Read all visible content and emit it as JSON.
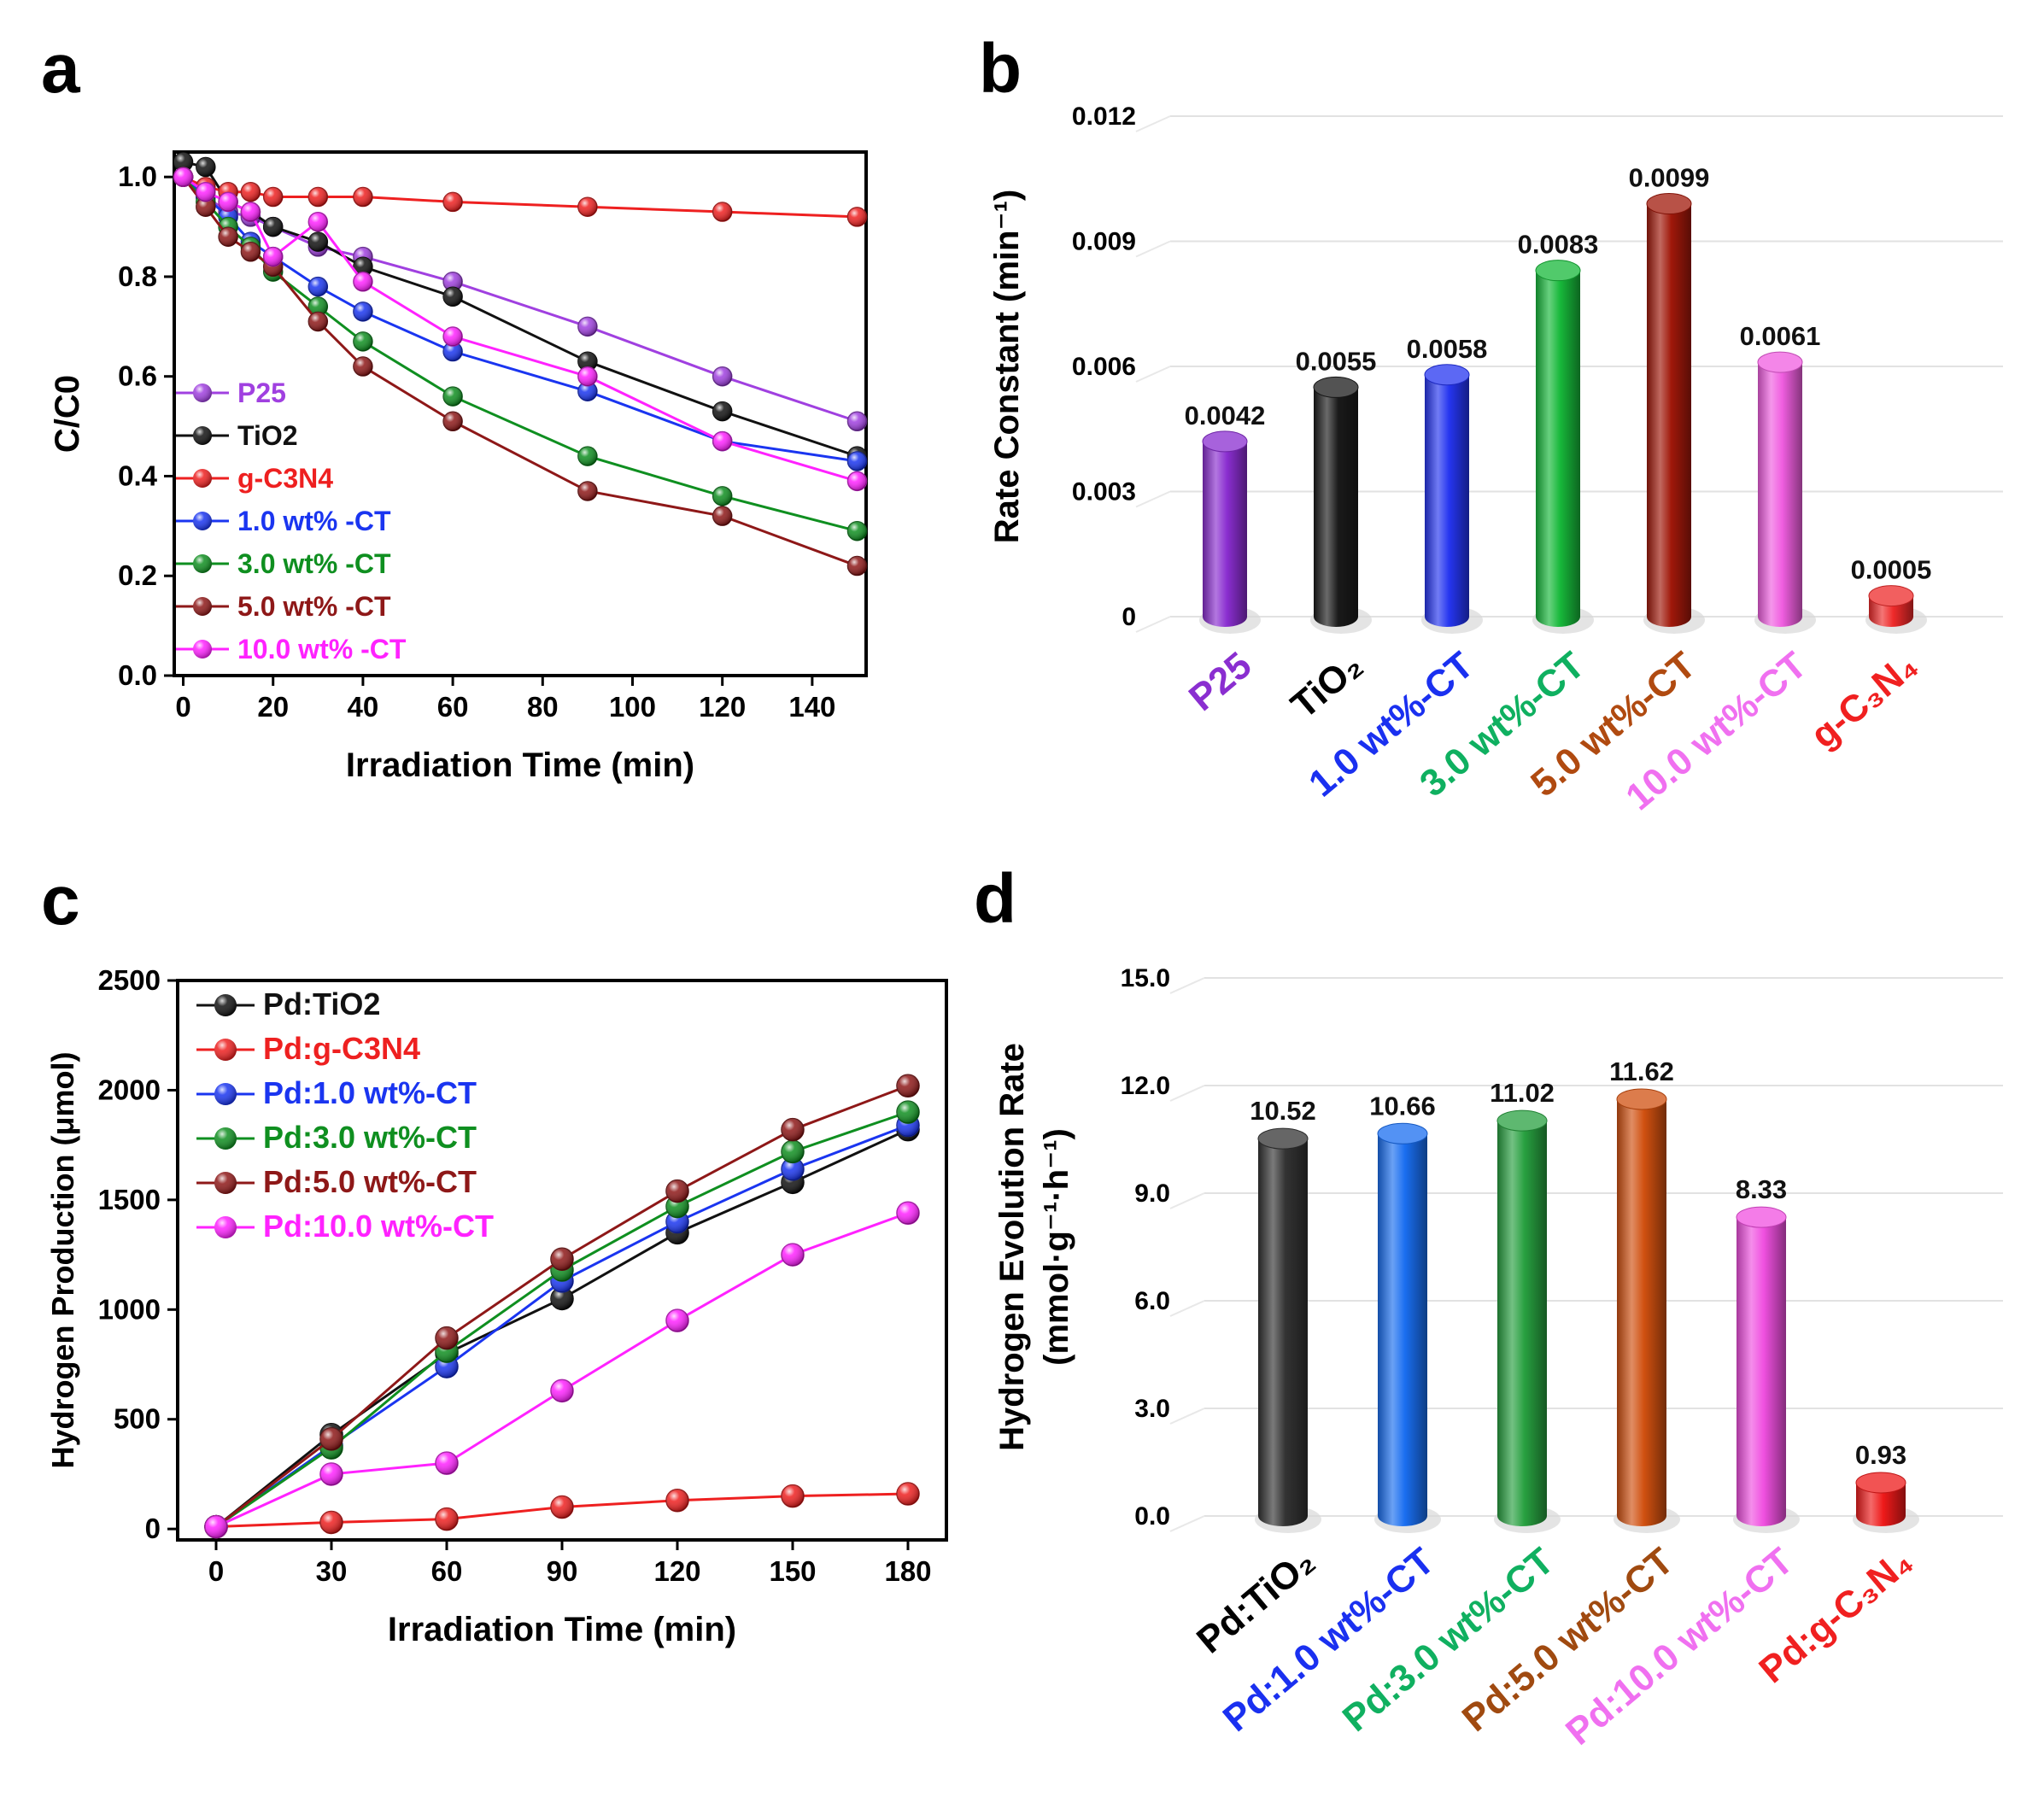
{
  "panels": [
    {
      "letter": "a"
    },
    {
      "letter": "b"
    },
    {
      "letter": "c"
    },
    {
      "letter": "d"
    }
  ],
  "chart_data": [
    {
      "id": "a",
      "type": "line",
      "title": "",
      "xlabel": "Irradiation Time (min)",
      "ylabel": "C/C0",
      "xlim": [
        -2,
        152
      ],
      "ylim": [
        0,
        1.05
      ],
      "xticks": [
        0,
        20,
        40,
        60,
        80,
        100,
        120,
        140
      ],
      "yticks": [
        0.0,
        0.2,
        0.4,
        0.6,
        0.8,
        1.0
      ],
      "ytick_labels": [
        "0.0",
        "0.2",
        "0.4",
        "0.6",
        "0.8",
        "1.0"
      ],
      "x": [
        0,
        5,
        10,
        15,
        20,
        30,
        40,
        60,
        90,
        120,
        150
      ],
      "legend_position": "left",
      "series": [
        {
          "name": "P25",
          "color": "#a040e0",
          "values": [
            1.0,
            0.96,
            0.93,
            0.92,
            0.9,
            0.86,
            0.84,
            0.79,
            0.7,
            0.6,
            0.51
          ]
        },
        {
          "name": "TiO2",
          "color": "#111111",
          "values": [
            1.03,
            1.02,
            0.95,
            0.93,
            0.9,
            0.87,
            0.82,
            0.76,
            0.63,
            0.53,
            0.44
          ]
        },
        {
          "name": "g-C3N4",
          "color": "#ee2020",
          "values": [
            1.0,
            0.98,
            0.97,
            0.97,
            0.96,
            0.96,
            0.96,
            0.95,
            0.94,
            0.93,
            0.92
          ]
        },
        {
          "name": "1.0 wt% -CT",
          "color": "#1a35f0",
          "values": [
            1.0,
            0.96,
            0.92,
            0.87,
            0.84,
            0.78,
            0.73,
            0.65,
            0.57,
            0.47,
            0.43
          ]
        },
        {
          "name": "3.0 wt% -CT",
          "color": "#0f8f20",
          "values": [
            1.0,
            0.95,
            0.9,
            0.86,
            0.81,
            0.74,
            0.67,
            0.56,
            0.44,
            0.36,
            0.29
          ]
        },
        {
          "name": "5.0 wt% -CT",
          "color": "#8e1818",
          "values": [
            1.0,
            0.94,
            0.88,
            0.85,
            0.82,
            0.71,
            0.62,
            0.51,
            0.37,
            0.32,
            0.22
          ]
        },
        {
          "name": "10.0 wt% -CT",
          "color": "#ff22ff",
          "values": [
            1.0,
            0.97,
            0.95,
            0.93,
            0.84,
            0.91,
            0.79,
            0.68,
            0.6,
            0.47,
            0.39
          ]
        }
      ]
    },
    {
      "id": "b",
      "type": "bar",
      "title": "",
      "ylabel": "Rate Constant (min⁻¹)",
      "ylim": [
        0,
        0.012
      ],
      "yticks": [
        0,
        0.003,
        0.006,
        0.009,
        0.012
      ],
      "ytick_labels": [
        "0",
        "0.003",
        "0.006",
        "0.009",
        "0.012"
      ],
      "categories": [
        "P25",
        "TiO₂",
        "1.0 wt%-CT",
        "3.0 wt%-CT",
        "5.0 wt%-CT",
        "10.0 wt%-CT",
        "g-C₃N₄"
      ],
      "values": [
        0.0042,
        0.0055,
        0.0058,
        0.0083,
        0.0099,
        0.0061,
        0.0005
      ],
      "value_labels": [
        "0.0042",
        "0.0055",
        "0.0058",
        "0.0083",
        "0.0099",
        "0.0061",
        "0.0005"
      ],
      "bar_colors": [
        "#8a2ed0",
        "#1a1a1a",
        "#2535f0",
        "#17b83a",
        "#a0180a",
        "#f05ee0",
        "#ee2a2a"
      ],
      "label_colors": [
        "#8a2ed0",
        "#000000",
        "#1a30f0",
        "#0fb060",
        "#b04a10",
        "#f070f0",
        "#f02020"
      ]
    },
    {
      "id": "c",
      "type": "line",
      "title": "",
      "xlabel": "Irradiation Time (min)",
      "ylabel": "Hydrogen Production (μmol)",
      "xlim": [
        -10,
        190
      ],
      "ylim": [
        -50,
        2500
      ],
      "xticks": [
        0,
        30,
        60,
        90,
        120,
        150,
        180
      ],
      "yticks": [
        0,
        500,
        1000,
        1500,
        2000,
        2500
      ],
      "x": [
        0,
        30,
        60,
        90,
        120,
        150,
        180
      ],
      "legend_position": "top-left",
      "series": [
        {
          "name": "Pd:TiO2",
          "color": "#111111",
          "values": [
            10,
            430,
            800,
            1050,
            1350,
            1580,
            1820
          ]
        },
        {
          "name": "Pd:g-C3N4",
          "color": "#ee2020",
          "values": [
            10,
            30,
            45,
            100,
            130,
            150,
            160
          ]
        },
        {
          "name": "Pd:1.0 wt%-CT",
          "color": "#1a35f0",
          "values": [
            10,
            380,
            740,
            1130,
            1400,
            1640,
            1840
          ]
        },
        {
          "name": "Pd:3.0 wt%-CT",
          "color": "#0f8f20",
          "values": [
            10,
            370,
            810,
            1180,
            1470,
            1720,
            1900
          ]
        },
        {
          "name": "Pd:5.0 wt%-CT",
          "color": "#8e1818",
          "values": [
            10,
            410,
            870,
            1230,
            1540,
            1820,
            2020
          ]
        },
        {
          "name": "Pd:10.0 wt%-CT",
          "color": "#ff22ff",
          "values": [
            10,
            250,
            300,
            630,
            950,
            1250,
            1440
          ]
        }
      ]
    },
    {
      "id": "d",
      "type": "bar",
      "title": "",
      "ylabel": "Hydrogen Evolution Rate",
      "ylabel_units": "(mmol·g⁻¹·h⁻¹)",
      "ylim": [
        0,
        15
      ],
      "yticks": [
        0,
        3,
        6,
        9,
        12,
        15
      ],
      "ytick_labels": [
        "0.0",
        "3.0",
        "6.0",
        "9.0",
        "12.0",
        "15.0"
      ],
      "categories": [
        "Pd:TiO₂",
        "Pd:1.0 wt%-CT",
        "Pd:3.0 wt%-CT",
        "Pd:5.0 wt%-CT",
        "Pd:10.0 wt%-CT",
        "Pd:g-C₃N₄"
      ],
      "values": [
        10.52,
        10.66,
        11.02,
        11.62,
        8.33,
        0.93
      ],
      "value_labels": [
        "10.52",
        "10.66",
        "11.02",
        "11.62",
        "8.33",
        "0.93"
      ],
      "bar_colors": [
        "#333333",
        "#1a6ef0",
        "#28a040",
        "#d05010",
        "#f050e0",
        "#ee1a1a"
      ],
      "label_colors": [
        "#000000",
        "#1a30f0",
        "#10b060",
        "#a04a10",
        "#f070f0",
        "#f02020"
      ]
    }
  ]
}
